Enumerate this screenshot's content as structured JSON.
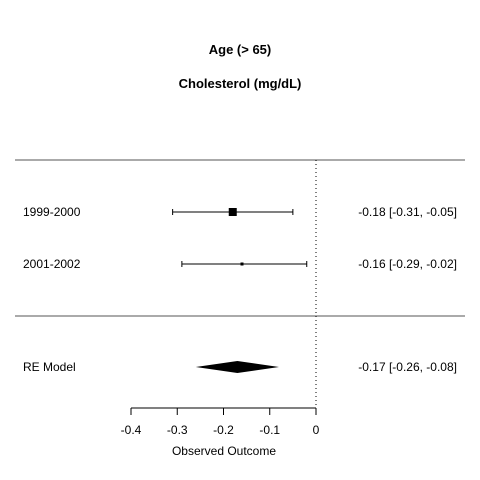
{
  "chart_data": {
    "type": "forest",
    "title": "Age (> 65)",
    "subtitle": "Cholesterol (mg/dL)",
    "xlabel": "Observed Outcome",
    "xlim": [
      -0.4,
      0
    ],
    "xticks": [
      -0.4,
      -0.3,
      -0.2,
      -0.1,
      0
    ],
    "xtick_labels": [
      "-0.4",
      "-0.3",
      "-0.2",
      "-0.1",
      "0"
    ],
    "reference_line": 0,
    "studies": [
      {
        "label": "1999-2000",
        "estimate": -0.18,
        "ci_low": -0.31,
        "ci_high": -0.05,
        "text": "-0.18 [-0.31, -0.05]",
        "weight": "large"
      },
      {
        "label": "2001-2002",
        "estimate": -0.16,
        "ci_low": -0.29,
        "ci_high": -0.02,
        "text": "-0.16 [-0.29, -0.02]",
        "weight": "small"
      }
    ],
    "summary": {
      "label": "RE Model",
      "estimate": -0.17,
      "ci_low": -0.26,
      "ci_high": -0.08,
      "text": "-0.17 [-0.26, -0.08]"
    }
  }
}
